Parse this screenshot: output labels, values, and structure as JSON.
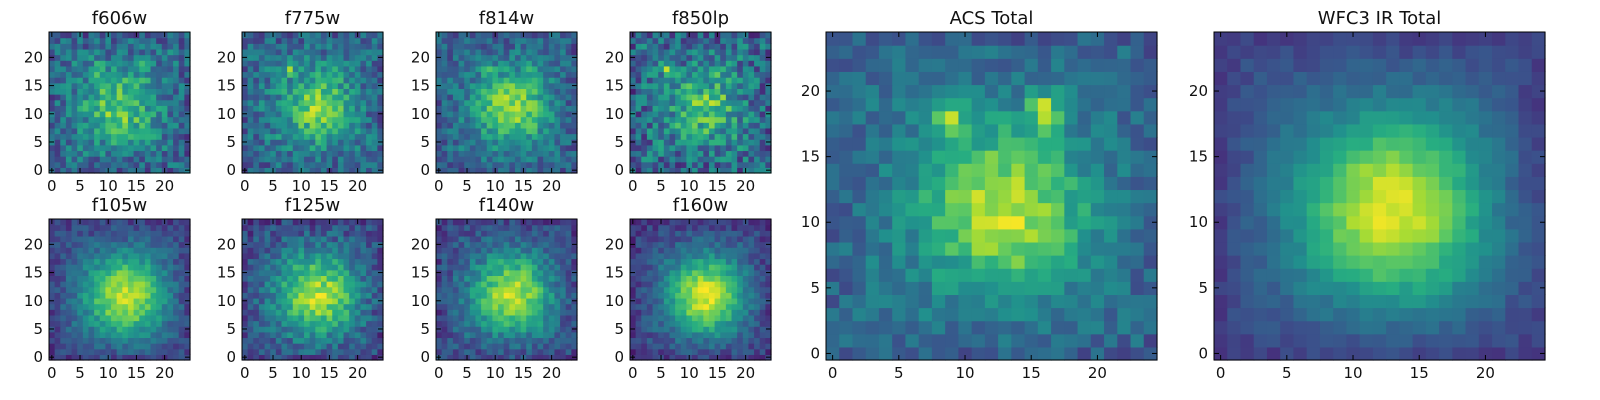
{
  "chart_data": [
    {
      "type": "heatmap",
      "title": "f606w",
      "x_range": [
        -0.5,
        24.5
      ],
      "y_range": [
        -0.5,
        24.5
      ],
      "xticks": [
        "0",
        "5",
        "10",
        "15",
        "20"
      ],
      "yticks": [
        "0",
        "5",
        "10",
        "15",
        "20"
      ],
      "colormap": "viridis",
      "grid": 25,
      "features": {
        "center": [
          12,
          11
        ],
        "sigma": 4.0,
        "peak": 0.78,
        "bg": 0.42,
        "noise": 0.18,
        "bright_spots": [
          [
            8,
            18
          ],
          [
            16,
            18
          ]
        ]
      }
    },
    {
      "type": "heatmap",
      "title": "f775w",
      "x_range": [
        -0.5,
        24.5
      ],
      "y_range": [
        -0.5,
        24.5
      ],
      "xticks": [
        "0",
        "5",
        "10",
        "15",
        "20"
      ],
      "yticks": [
        "0",
        "5",
        "10",
        "15",
        "20"
      ],
      "colormap": "viridis",
      "grid": 25,
      "features": {
        "center": [
          13,
          11
        ],
        "sigma": 4.0,
        "peak": 0.8,
        "bg": 0.42,
        "noise": 0.17,
        "bright_spots": [
          [
            8,
            18
          ],
          [
            16,
            18
          ]
        ]
      }
    },
    {
      "type": "heatmap",
      "title": "f814w",
      "x_range": [
        -0.5,
        24.5
      ],
      "y_range": [
        -0.5,
        24.5
      ],
      "xticks": [
        "0",
        "5",
        "10",
        "15",
        "20"
      ],
      "yticks": [
        "0",
        "5",
        "10",
        "15",
        "20"
      ],
      "colormap": "viridis",
      "grid": 25,
      "features": {
        "center": [
          13,
          11
        ],
        "sigma": 4.2,
        "peak": 0.85,
        "bg": 0.4,
        "noise": 0.15,
        "bright_spots": [
          [
            9,
            18
          ],
          [
            16,
            18
          ]
        ]
      }
    },
    {
      "type": "heatmap",
      "title": "f850lp",
      "x_range": [
        -0.5,
        24.5
      ],
      "y_range": [
        -0.5,
        24.5
      ],
      "xticks": [
        "0",
        "5",
        "10",
        "15",
        "20"
      ],
      "yticks": [
        "0",
        "5",
        "10",
        "15",
        "20"
      ],
      "colormap": "viridis",
      "grid": 25,
      "features": {
        "center": [
          13,
          11
        ],
        "sigma": 3.8,
        "peak": 0.75,
        "bg": 0.42,
        "noise": 0.22,
        "bright_spots": [
          [
            6,
            18
          ],
          [
            16,
            18
          ]
        ]
      }
    },
    {
      "type": "heatmap",
      "title": "f105w",
      "x_range": [
        -0.5,
        24.5
      ],
      "y_range": [
        -0.5,
        24.5
      ],
      "xticks": [
        "0",
        "5",
        "10",
        "15",
        "20"
      ],
      "yticks": [
        "0",
        "5",
        "10",
        "15",
        "20"
      ],
      "colormap": "viridis",
      "grid": 25,
      "features": {
        "center": [
          13,
          11
        ],
        "sigma": 5.0,
        "peak": 0.92,
        "bg": 0.3,
        "noise": 0.1,
        "bright_spots": []
      }
    },
    {
      "type": "heatmap",
      "title": "f125w",
      "x_range": [
        -0.5,
        24.5
      ],
      "y_range": [
        -0.5,
        24.5
      ],
      "xticks": [
        "0",
        "5",
        "10",
        "15",
        "20"
      ],
      "yticks": [
        "0",
        "5",
        "10",
        "15",
        "20"
      ],
      "colormap": "viridis",
      "grid": 25,
      "features": {
        "center": [
          13,
          11
        ],
        "sigma": 5.0,
        "peak": 0.88,
        "bg": 0.32,
        "noise": 0.14,
        "bright_spots": []
      }
    },
    {
      "type": "heatmap",
      "title": "f140w",
      "x_range": [
        -0.5,
        24.5
      ],
      "y_range": [
        -0.5,
        24.5
      ],
      "xticks": [
        "0",
        "5",
        "10",
        "15",
        "20"
      ],
      "yticks": [
        "0",
        "5",
        "10",
        "15",
        "20"
      ],
      "colormap": "viridis",
      "grid": 25,
      "features": {
        "center": [
          13,
          11
        ],
        "sigma": 4.8,
        "peak": 0.9,
        "bg": 0.32,
        "noise": 0.12,
        "bright_spots": []
      }
    },
    {
      "type": "heatmap",
      "title": "f160w",
      "x_range": [
        -0.5,
        24.5
      ],
      "y_range": [
        -0.5,
        24.5
      ],
      "xticks": [
        "0",
        "5",
        "10",
        "15",
        "20"
      ],
      "yticks": [
        "0",
        "5",
        "10",
        "15",
        "20"
      ],
      "colormap": "viridis",
      "grid": 25,
      "features": {
        "center": [
          13,
          11
        ],
        "sigma": 4.8,
        "peak": 0.95,
        "bg": 0.28,
        "noise": 0.1,
        "bright_spots": []
      }
    },
    {
      "type": "heatmap",
      "title": "ACS Total",
      "x_range": [
        -0.5,
        24.5
      ],
      "y_range": [
        -0.5,
        24.5
      ],
      "xticks": [
        "0",
        "5",
        "10",
        "15",
        "20"
      ],
      "yticks": [
        "0",
        "5",
        "10",
        "15",
        "20"
      ],
      "colormap": "viridis",
      "grid": 25,
      "features": {
        "center": [
          13,
          11
        ],
        "sigma": 4.0,
        "peak": 0.92,
        "bg": 0.42,
        "noise": 0.11,
        "bright_spots": [
          [
            8,
            18
          ],
          [
            9,
            18
          ],
          [
            16,
            18
          ],
          [
            16,
            19
          ]
        ]
      }
    },
    {
      "type": "heatmap",
      "title": "WFC3 IR Total",
      "x_range": [
        -0.5,
        24.5
      ],
      "y_range": [
        -0.5,
        24.5
      ],
      "xticks": [
        "0",
        "5",
        "10",
        "15",
        "20"
      ],
      "yticks": [
        "0",
        "5",
        "10",
        "15",
        "20"
      ],
      "colormap": "viridis",
      "grid": 25,
      "features": {
        "center": [
          13,
          11
        ],
        "sigma": 5.0,
        "peak": 0.96,
        "bg": 0.3,
        "noise": 0.05,
        "bright_spots": []
      }
    }
  ]
}
